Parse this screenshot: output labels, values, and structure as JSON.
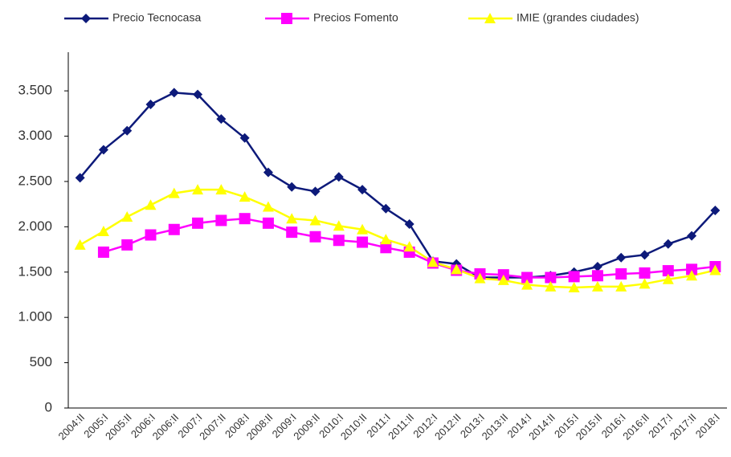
{
  "chart_data": {
    "type": "line",
    "categories": [
      "2004:II",
      "2005:I",
      "2005:II",
      "2006:I",
      "2006:II",
      "2007:I",
      "2007:II",
      "2008:I",
      "2008:II",
      "2009:I",
      "2009:II",
      "2010:I",
      "2010:II",
      "2011:I",
      "2011:II",
      "2012:I",
      "2012:II",
      "2013:I",
      "2013:II",
      "2014:I",
      "2014:II",
      "2015:I",
      "2015:II",
      "2016:I",
      "2016:II",
      "2017:I",
      "2017:II",
      "2018:I"
    ],
    "series": [
      {
        "name": "Precio Tecnocasa",
        "color": "#0d1a7a",
        "marker": "diamond",
        "values": [
          2540,
          2850,
          3060,
          3350,
          3480,
          3460,
          3190,
          2980,
          2600,
          2440,
          2390,
          2550,
          2410,
          2200,
          2030,
          1620,
          1590,
          1440,
          1440,
          1440,
          1460,
          1500,
          1560,
          1660,
          1690,
          1810,
          1900,
          2180
        ]
      },
      {
        "name": "Precios Fomento",
        "color": "#ff00ff",
        "marker": "square",
        "values": [
          null,
          1720,
          1800,
          1910,
          1970,
          2040,
          2070,
          2090,
          2040,
          1940,
          1890,
          1850,
          1830,
          1770,
          1720,
          1600,
          1520,
          1480,
          1470,
          1440,
          1440,
          1450,
          1460,
          1480,
          1490,
          1515,
          1530,
          1560
        ]
      },
      {
        "name": "IMIE (grandes ciudades)",
        "color": "#ffff00",
        "marker": "triangle",
        "values": [
          1800,
          1950,
          2110,
          2240,
          2370,
          2410,
          2410,
          2330,
          2220,
          2090,
          2070,
          2010,
          1970,
          1860,
          1780,
          1610,
          1530,
          1430,
          1410,
          1360,
          1340,
          1330,
          1340,
          1340,
          1370,
          1420,
          1460,
          1520
        ]
      }
    ],
    "ylim": [
      0,
      3900
    ],
    "yticks": [
      0,
      500,
      {
        "value": 1000,
        "label": "1.000"
      },
      {
        "value": 1500,
        "label": "1.500"
      },
      {
        "value": 2000,
        "label": "2.000"
      },
      {
        "value": 2500,
        "label": "2.500"
      },
      {
        "value": 3000,
        "label": "3.000"
      },
      {
        "value": 3500,
        "label": "3.500"
      }
    ],
    "legend": "top"
  }
}
